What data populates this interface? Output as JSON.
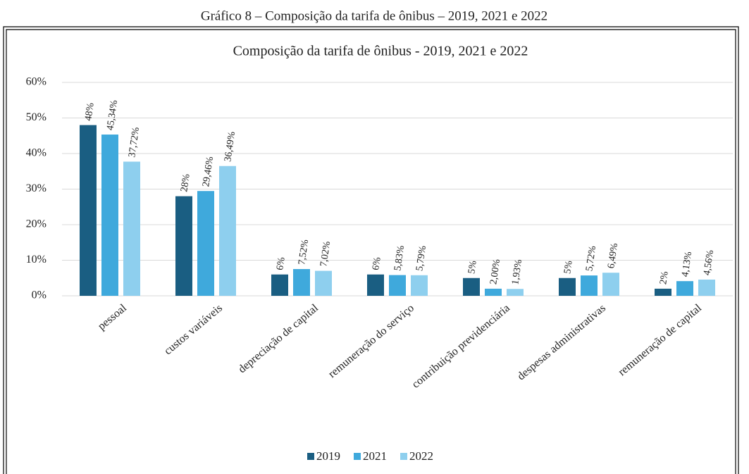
{
  "caption": "Gráfico 8 – Composição da tarifa de ônibus – 2019, 2021 e 2022",
  "chart_data": {
    "type": "bar",
    "title": "Composição da tarifa de ônibus - 2019, 2021 e 2022",
    "categories": [
      "pessoal",
      "custos variáveis",
      "depreciação de capital",
      "remuneração do serviço",
      "contribuição previdenciária",
      "despesas administrativas",
      "remuneração de capital"
    ],
    "series": [
      {
        "name": "2019",
        "color": "#1a5e82",
        "values": [
          48,
          28,
          6,
          6,
          5,
          5,
          2
        ],
        "value_labels": [
          "48%",
          "28%",
          "6%",
          "6%",
          "5%",
          "5%",
          "2%"
        ]
      },
      {
        "name": "2021",
        "color": "#3fa9dc",
        "values": [
          45.34,
          29.46,
          7.52,
          5.83,
          2.0,
          5.72,
          4.13
        ],
        "value_labels": [
          "45,34%",
          "29,46%",
          "7,52%",
          "5,83%",
          "2,00%",
          "5,72%",
          "4,13%"
        ]
      },
      {
        "name": "2022",
        "color": "#8ecfee",
        "values": [
          37.72,
          36.49,
          7.02,
          5.79,
          1.93,
          6.49,
          4.56
        ],
        "value_labels": [
          "37,72%",
          "36,49%",
          "7,02%",
          "5,79%",
          "1,93%",
          "6,49%",
          "4,56%"
        ]
      }
    ],
    "ylim": [
      0,
      60
    ],
    "yticks": [
      {
        "value": 0,
        "label": "0%"
      },
      {
        "value": 10,
        "label": "10%"
      },
      {
        "value": 20,
        "label": "20%"
      },
      {
        "value": 30,
        "label": "30%"
      },
      {
        "value": 40,
        "label": "40%"
      },
      {
        "value": 50,
        "label": "50%"
      },
      {
        "value": 60,
        "label": "60%"
      }
    ],
    "grid": true,
    "legend": "bottom"
  }
}
